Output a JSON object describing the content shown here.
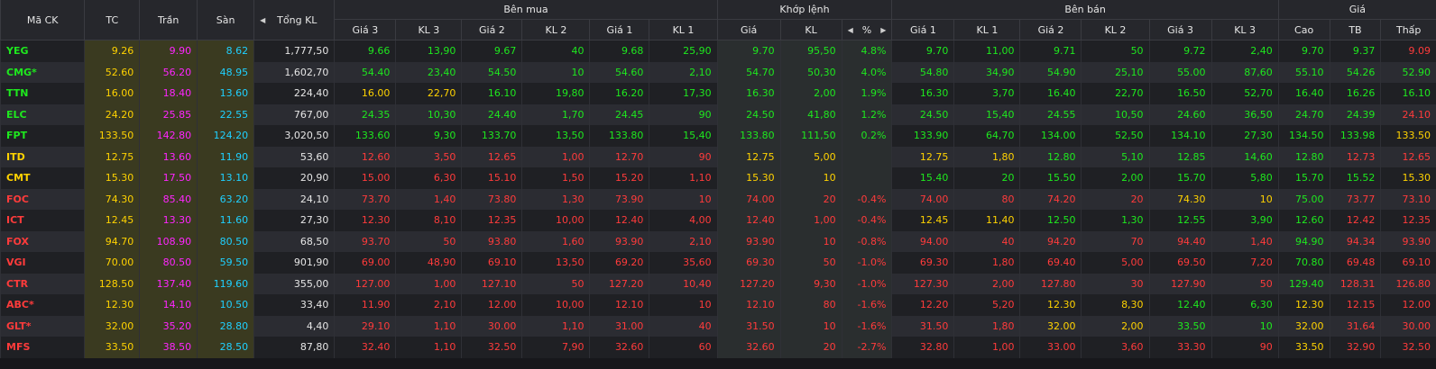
{
  "headers": {
    "symbol": "Mã CK",
    "ref": "TC",
    "ceil": "Trần",
    "floor": "Sàn",
    "total_vol": "Tổng KL",
    "buy_group": "Bên mua",
    "match_group": "Khớp lệnh",
    "sell_group": "Bên bán",
    "price_group": "Giá",
    "buy_cols": [
      "Giá 3",
      "KL 3",
      "Giá 2",
      "KL 2",
      "Giá 1",
      "KL 1"
    ],
    "match_cols": [
      "Giá",
      "KL",
      "%"
    ],
    "sell_cols": [
      "Giá 1",
      "KL 1",
      "Giá 2",
      "KL 2",
      "Giá 3",
      "KL 3"
    ],
    "price_cols": [
      "Cao",
      "TB",
      "Thấp"
    ]
  },
  "colors": {
    "green": "#1ee81e",
    "red": "#ff3b3b",
    "yellow": "#ffd200",
    "purple": "#ff25ff",
    "cyan": "#1fd0ff",
    "white": "#e6e6e6"
  },
  "rows": [
    {
      "sym": [
        "YEG",
        "g"
      ],
      "tc": "9.26",
      "tran": "9.90",
      "san": "8.62",
      "tkl": "1,777,50",
      "cells": [
        [
          "9.66",
          "g"
        ],
        [
          "13,90",
          "g"
        ],
        [
          "9.67",
          "g"
        ],
        [
          "40",
          "g"
        ],
        [
          "9.68",
          "g"
        ],
        [
          "25,90",
          "g"
        ],
        [
          "9.70",
          "g"
        ],
        [
          "95,50",
          "g"
        ],
        [
          "4.8%",
          "g"
        ],
        [
          "9.70",
          "g"
        ],
        [
          "11,00",
          "g"
        ],
        [
          "9.71",
          "g"
        ],
        [
          "50",
          "g"
        ],
        [
          "9.72",
          "g"
        ],
        [
          "2,40",
          "g"
        ],
        [
          "9.70",
          "g"
        ],
        [
          "9.37",
          "g"
        ],
        [
          "9.09",
          "r"
        ]
      ]
    },
    {
      "sym": [
        "CMG*",
        "g"
      ],
      "tc": "52.60",
      "tran": "56.20",
      "san": "48.95",
      "tkl": "1,602,70",
      "cells": [
        [
          "54.40",
          "g"
        ],
        [
          "23,40",
          "g"
        ],
        [
          "54.50",
          "g"
        ],
        [
          "10",
          "g"
        ],
        [
          "54.60",
          "g"
        ],
        [
          "2,10",
          "g"
        ],
        [
          "54.70",
          "g"
        ],
        [
          "50,30",
          "g"
        ],
        [
          "4.0%",
          "g"
        ],
        [
          "54.80",
          "g"
        ],
        [
          "34,90",
          "g"
        ],
        [
          "54.90",
          "g"
        ],
        [
          "25,10",
          "g"
        ],
        [
          "55.00",
          "g"
        ],
        [
          "87,60",
          "g"
        ],
        [
          "55.10",
          "g"
        ],
        [
          "54.26",
          "g"
        ],
        [
          "52.90",
          "g"
        ]
      ]
    },
    {
      "sym": [
        "TTN",
        "g"
      ],
      "tc": "16.00",
      "tran": "18.40",
      "san": "13.60",
      "tkl": "224,40",
      "cells": [
        [
          "16.00",
          "y"
        ],
        [
          "22,70",
          "y"
        ],
        [
          "16.10",
          "g"
        ],
        [
          "19,80",
          "g"
        ],
        [
          "16.20",
          "g"
        ],
        [
          "17,30",
          "g"
        ],
        [
          "16.30",
          "g"
        ],
        [
          "2,00",
          "g"
        ],
        [
          "1.9%",
          "g"
        ],
        [
          "16.30",
          "g"
        ],
        [
          "3,70",
          "g"
        ],
        [
          "16.40",
          "g"
        ],
        [
          "22,70",
          "g"
        ],
        [
          "16.50",
          "g"
        ],
        [
          "52,70",
          "g"
        ],
        [
          "16.40",
          "g"
        ],
        [
          "16.26",
          "g"
        ],
        [
          "16.10",
          "g"
        ]
      ]
    },
    {
      "sym": [
        "ELC",
        "g"
      ],
      "tc": "24.20",
      "tran": "25.85",
      "san": "22.55",
      "tkl": "767,00",
      "cells": [
        [
          "24.35",
          "g"
        ],
        [
          "10,30",
          "g"
        ],
        [
          "24.40",
          "g"
        ],
        [
          "1,70",
          "g"
        ],
        [
          "24.45",
          "g"
        ],
        [
          "90",
          "g"
        ],
        [
          "24.50",
          "g"
        ],
        [
          "41,80",
          "g"
        ],
        [
          "1.2%",
          "g"
        ],
        [
          "24.50",
          "g"
        ],
        [
          "15,40",
          "g"
        ],
        [
          "24.55",
          "g"
        ],
        [
          "10,50",
          "g"
        ],
        [
          "24.60",
          "g"
        ],
        [
          "36,50",
          "g"
        ],
        [
          "24.70",
          "g"
        ],
        [
          "24.39",
          "g"
        ],
        [
          "24.10",
          "r"
        ]
      ]
    },
    {
      "sym": [
        "FPT",
        "g"
      ],
      "tc": "133.50",
      "tran": "142.80",
      "san": "124.20",
      "tkl": "3,020,50",
      "cells": [
        [
          "133.60",
          "g"
        ],
        [
          "9,30",
          "g"
        ],
        [
          "133.70",
          "g"
        ],
        [
          "13,50",
          "g"
        ],
        [
          "133.80",
          "g"
        ],
        [
          "15,40",
          "g"
        ],
        [
          "133.80",
          "g"
        ],
        [
          "111,50",
          "g"
        ],
        [
          "0.2%",
          "g"
        ],
        [
          "133.90",
          "g"
        ],
        [
          "64,70",
          "g"
        ],
        [
          "134.00",
          "g"
        ],
        [
          "52,50",
          "g"
        ],
        [
          "134.10",
          "g"
        ],
        [
          "27,30",
          "g"
        ],
        [
          "134.50",
          "g"
        ],
        [
          "133.98",
          "g"
        ],
        [
          "133.50",
          "y"
        ]
      ]
    },
    {
      "sym": [
        "ITD",
        "y"
      ],
      "tc": "12.75",
      "tran": "13.60",
      "san": "11.90",
      "tkl": "53,60",
      "cells": [
        [
          "12.60",
          "r"
        ],
        [
          "3,50",
          "r"
        ],
        [
          "12.65",
          "r"
        ],
        [
          "1,00",
          "r"
        ],
        [
          "12.70",
          "r"
        ],
        [
          "90",
          "r"
        ],
        [
          "12.75",
          "y"
        ],
        [
          "5,00",
          "y"
        ],
        [
          "",
          ""
        ],
        [
          "12.75",
          "y"
        ],
        [
          "1,80",
          "y"
        ],
        [
          "12.80",
          "g"
        ],
        [
          "5,10",
          "g"
        ],
        [
          "12.85",
          "g"
        ],
        [
          "14,60",
          "g"
        ],
        [
          "12.80",
          "g"
        ],
        [
          "12.73",
          "r"
        ],
        [
          "12.65",
          "r"
        ]
      ]
    },
    {
      "sym": [
        "CMT",
        "y"
      ],
      "tc": "15.30",
      "tran": "17.50",
      "san": "13.10",
      "tkl": "20,90",
      "cells": [
        [
          "15.00",
          "r"
        ],
        [
          "6,30",
          "r"
        ],
        [
          "15.10",
          "r"
        ],
        [
          "1,50",
          "r"
        ],
        [
          "15.20",
          "r"
        ],
        [
          "1,10",
          "r"
        ],
        [
          "15.30",
          "y"
        ],
        [
          "10",
          "y"
        ],
        [
          "",
          ""
        ],
        [
          "15.40",
          "g"
        ],
        [
          "20",
          "g"
        ],
        [
          "15.50",
          "g"
        ],
        [
          "2,00",
          "g"
        ],
        [
          "15.70",
          "g"
        ],
        [
          "5,80",
          "g"
        ],
        [
          "15.70",
          "g"
        ],
        [
          "15.52",
          "g"
        ],
        [
          "15.30",
          "y"
        ]
      ]
    },
    {
      "sym": [
        "FOC",
        "r"
      ],
      "tc": "74.30",
      "tran": "85.40",
      "san": "63.20",
      "tkl": "24,10",
      "cells": [
        [
          "73.70",
          "r"
        ],
        [
          "1,40",
          "r"
        ],
        [
          "73.80",
          "r"
        ],
        [
          "1,30",
          "r"
        ],
        [
          "73.90",
          "r"
        ],
        [
          "10",
          "r"
        ],
        [
          "74.00",
          "r"
        ],
        [
          "20",
          "r"
        ],
        [
          "-0.4%",
          "r"
        ],
        [
          "74.00",
          "r"
        ],
        [
          "80",
          "r"
        ],
        [
          "74.20",
          "r"
        ],
        [
          "20",
          "r"
        ],
        [
          "74.30",
          "y"
        ],
        [
          "10",
          "y"
        ],
        [
          "75.00",
          "g"
        ],
        [
          "73.77",
          "r"
        ],
        [
          "73.10",
          "r"
        ]
      ]
    },
    {
      "sym": [
        "ICT",
        "r"
      ],
      "tc": "12.45",
      "tran": "13.30",
      "san": "11.60",
      "tkl": "27,30",
      "cells": [
        [
          "12.30",
          "r"
        ],
        [
          "8,10",
          "r"
        ],
        [
          "12.35",
          "r"
        ],
        [
          "10,00",
          "r"
        ],
        [
          "12.40",
          "r"
        ],
        [
          "4,00",
          "r"
        ],
        [
          "12.40",
          "r"
        ],
        [
          "1,00",
          "r"
        ],
        [
          "-0.4%",
          "r"
        ],
        [
          "12.45",
          "y"
        ],
        [
          "11,40",
          "y"
        ],
        [
          "12.50",
          "g"
        ],
        [
          "1,30",
          "g"
        ],
        [
          "12.55",
          "g"
        ],
        [
          "3,90",
          "g"
        ],
        [
          "12.60",
          "g"
        ],
        [
          "12.42",
          "r"
        ],
        [
          "12.35",
          "r"
        ]
      ]
    },
    {
      "sym": [
        "FOX",
        "r"
      ],
      "tc": "94.70",
      "tran": "108.90",
      "san": "80.50",
      "tkl": "68,50",
      "cells": [
        [
          "93.70",
          "r"
        ],
        [
          "50",
          "r"
        ],
        [
          "93.80",
          "r"
        ],
        [
          "1,60",
          "r"
        ],
        [
          "93.90",
          "r"
        ],
        [
          "2,10",
          "r"
        ],
        [
          "93.90",
          "r"
        ],
        [
          "10",
          "r"
        ],
        [
          "-0.8%",
          "r"
        ],
        [
          "94.00",
          "r"
        ],
        [
          "40",
          "r"
        ],
        [
          "94.20",
          "r"
        ],
        [
          "70",
          "r"
        ],
        [
          "94.40",
          "r"
        ],
        [
          "1,40",
          "r"
        ],
        [
          "94.90",
          "g"
        ],
        [
          "94.34",
          "r"
        ],
        [
          "93.90",
          "r"
        ]
      ]
    },
    {
      "sym": [
        "VGI",
        "r"
      ],
      "tc": "70.00",
      "tran": "80.50",
      "san": "59.50",
      "tkl": "901,90",
      "cells": [
        [
          "69.00",
          "r"
        ],
        [
          "48,90",
          "r"
        ],
        [
          "69.10",
          "r"
        ],
        [
          "13,50",
          "r"
        ],
        [
          "69.20",
          "r"
        ],
        [
          "35,60",
          "r"
        ],
        [
          "69.30",
          "r"
        ],
        [
          "50",
          "r"
        ],
        [
          "-1.0%",
          "r"
        ],
        [
          "69.30",
          "r"
        ],
        [
          "1,80",
          "r"
        ],
        [
          "69.40",
          "r"
        ],
        [
          "5,00",
          "r"
        ],
        [
          "69.50",
          "r"
        ],
        [
          "7,20",
          "r"
        ],
        [
          "70.80",
          "g"
        ],
        [
          "69.48",
          "r"
        ],
        [
          "69.10",
          "r"
        ]
      ]
    },
    {
      "sym": [
        "CTR",
        "r"
      ],
      "tc": "128.50",
      "tran": "137.40",
      "san": "119.60",
      "tkl": "355,00",
      "cells": [
        [
          "127.00",
          "r"
        ],
        [
          "1,00",
          "r"
        ],
        [
          "127.10",
          "r"
        ],
        [
          "50",
          "r"
        ],
        [
          "127.20",
          "r"
        ],
        [
          "10,40",
          "r"
        ],
        [
          "127.20",
          "r"
        ],
        [
          "9,30",
          "r"
        ],
        [
          "-1.0%",
          "r"
        ],
        [
          "127.30",
          "r"
        ],
        [
          "2,00",
          "r"
        ],
        [
          "127.80",
          "r"
        ],
        [
          "30",
          "r"
        ],
        [
          "127.90",
          "r"
        ],
        [
          "50",
          "r"
        ],
        [
          "129.40",
          "g"
        ],
        [
          "128.31",
          "r"
        ],
        [
          "126.80",
          "r"
        ]
      ]
    },
    {
      "sym": [
        "ABC*",
        "r"
      ],
      "tc": "12.30",
      "tran": "14.10",
      "san": "10.50",
      "tkl": "33,40",
      "cells": [
        [
          "11.90",
          "r"
        ],
        [
          "2,10",
          "r"
        ],
        [
          "12.00",
          "r"
        ],
        [
          "10,00",
          "r"
        ],
        [
          "12.10",
          "r"
        ],
        [
          "10",
          "r"
        ],
        [
          "12.10",
          "r"
        ],
        [
          "80",
          "r"
        ],
        [
          "-1.6%",
          "r"
        ],
        [
          "12.20",
          "r"
        ],
        [
          "5,20",
          "r"
        ],
        [
          "12.30",
          "y"
        ],
        [
          "8,30",
          "y"
        ],
        [
          "12.40",
          "g"
        ],
        [
          "6,30",
          "g"
        ],
        [
          "12.30",
          "y"
        ],
        [
          "12.15",
          "r"
        ],
        [
          "12.00",
          "r"
        ]
      ]
    },
    {
      "sym": [
        "GLT*",
        "r"
      ],
      "tc": "32.00",
      "tran": "35.20",
      "san": "28.80",
      "tkl": "4,40",
      "cells": [
        [
          "29.10",
          "r"
        ],
        [
          "1,10",
          "r"
        ],
        [
          "30.00",
          "r"
        ],
        [
          "1,10",
          "r"
        ],
        [
          "31.00",
          "r"
        ],
        [
          "40",
          "r"
        ],
        [
          "31.50",
          "r"
        ],
        [
          "10",
          "r"
        ],
        [
          "-1.6%",
          "r"
        ],
        [
          "31.50",
          "r"
        ],
        [
          "1,80",
          "r"
        ],
        [
          "32.00",
          "y"
        ],
        [
          "2,00",
          "y"
        ],
        [
          "33.50",
          "g"
        ],
        [
          "10",
          "g"
        ],
        [
          "32.00",
          "y"
        ],
        [
          "31.64",
          "r"
        ],
        [
          "30.00",
          "r"
        ]
      ]
    },
    {
      "sym": [
        "MFS",
        "r"
      ],
      "tc": "33.50",
      "tran": "38.50",
      "san": "28.50",
      "tkl": "87,80",
      "cells": [
        [
          "32.40",
          "r"
        ],
        [
          "1,10",
          "r"
        ],
        [
          "32.50",
          "r"
        ],
        [
          "7,90",
          "r"
        ],
        [
          "32.60",
          "r"
        ],
        [
          "60",
          "r"
        ],
        [
          "32.60",
          "r"
        ],
        [
          "20",
          "r"
        ],
        [
          "-2.7%",
          "r"
        ],
        [
          "32.80",
          "r"
        ],
        [
          "1,00",
          "r"
        ],
        [
          "33.00",
          "r"
        ],
        [
          "3,60",
          "r"
        ],
        [
          "33.30",
          "r"
        ],
        [
          "90",
          "r"
        ],
        [
          "33.50",
          "y"
        ],
        [
          "32.90",
          "r"
        ],
        [
          "32.50",
          "r"
        ]
      ]
    }
  ]
}
